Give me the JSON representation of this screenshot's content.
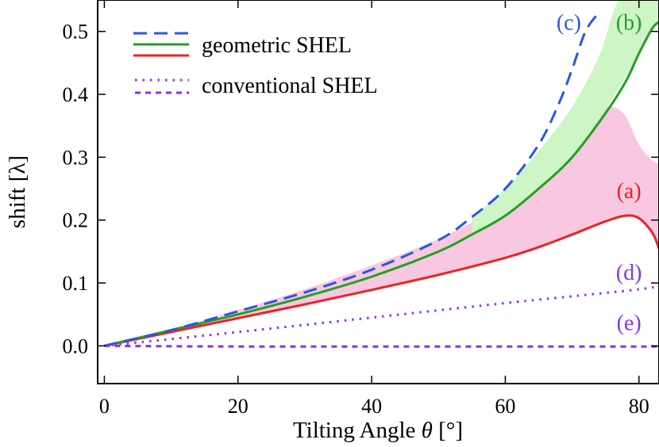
{
  "chart_data": {
    "type": "line",
    "xlabel_prefix": "Tilting Angle ",
    "xlabel_symbol": "θ",
    "xlabel_suffix": " [°]",
    "ylabel": "shift [λ]",
    "xlim": [
      -1,
      83
    ],
    "ylim": [
      -0.06,
      0.55
    ],
    "xticks": [
      "0",
      "20",
      "40",
      "60",
      "80"
    ],
    "xtick_values": [
      0,
      20,
      40,
      60,
      80
    ],
    "yticks": [
      "0.0",
      "0.1",
      "0.2",
      "0.3",
      "0.4",
      "0.5"
    ],
    "ytick_values": [
      0,
      0.1,
      0.2,
      0.3,
      0.4,
      0.5
    ],
    "legend": {
      "position": "top-left",
      "entries": [
        {
          "label": "geometric SHEL",
          "styles": [
            "dashed-blue",
            "solid-green",
            "solid-red"
          ]
        },
        {
          "label": "conventional SHEL",
          "styles": [
            "dotted-purple",
            "dashed-purple"
          ]
        }
      ]
    },
    "series": [
      {
        "id": "a",
        "label": "(a)",
        "style": "solid",
        "color": "#ee2222",
        "x": [
          0,
          10,
          20,
          30,
          40,
          50,
          60,
          65,
          70,
          75,
          78,
          80,
          82,
          83
        ],
        "y": [
          0,
          0.022,
          0.044,
          0.066,
          0.089,
          0.113,
          0.14,
          0.157,
          0.177,
          0.198,
          0.207,
          0.203,
          0.18,
          0.155
        ]
      },
      {
        "id": "b",
        "label": "(b)",
        "style": "solid",
        "color": "#22a022",
        "x": [
          0,
          10,
          20,
          30,
          40,
          50,
          55,
          60,
          65,
          70,
          75,
          78,
          80,
          82,
          83
        ],
        "y": [
          0,
          0.025,
          0.05,
          0.078,
          0.11,
          0.15,
          0.177,
          0.207,
          0.25,
          0.3,
          0.37,
          0.42,
          0.465,
          0.505,
          0.515
        ]
      },
      {
        "id": "c",
        "label": "(c)",
        "style": "dashed",
        "color": "#2a55e5",
        "x": [
          0,
          10,
          20,
          30,
          40,
          50,
          55,
          60,
          65,
          68,
          70,
          72,
          74
        ],
        "y": [
          0,
          0.025,
          0.055,
          0.085,
          0.121,
          0.168,
          0.205,
          0.25,
          0.32,
          0.385,
          0.44,
          0.5,
          0.53
        ]
      },
      {
        "id": "d",
        "label": "(d)",
        "style": "dotted",
        "color": "#8833ee",
        "x": [
          0,
          20,
          40,
          60,
          80,
          83
        ],
        "y": [
          0,
          0.022,
          0.045,
          0.068,
          0.09,
          0.097
        ]
      },
      {
        "id": "e",
        "label": "(e)",
        "style": "dashed",
        "color": "#8833ee",
        "x": [
          0,
          20,
          40,
          60,
          83
        ],
        "y": [
          0,
          -0.001,
          -0.001,
          -0.001,
          -0.001
        ]
      }
    ],
    "bands": [
      {
        "id": "pink-band",
        "color": "#f8c8e0",
        "x": [
          0,
          10,
          20,
          30,
          40,
          50,
          60,
          65,
          70,
          74,
          76,
          78,
          80,
          82,
          83
        ],
        "upper": [
          0,
          0.027,
          0.057,
          0.09,
          0.128,
          0.17,
          0.225,
          0.26,
          0.315,
          0.37,
          0.38,
          0.365,
          0.32,
          0.295,
          0.29
        ],
        "lower": [
          0,
          0.022,
          0.044,
          0.066,
          0.089,
          0.113,
          0.14,
          0.157,
          0.177,
          0.195,
          0.203,
          0.207,
          0.203,
          0.18,
          0.155
        ]
      },
      {
        "id": "green-band",
        "color": "#cdf5c5",
        "x": [
          55,
          60,
          65,
          70,
          74,
          77,
          80,
          82,
          83
        ],
        "upper": [
          0.205,
          0.25,
          0.31,
          0.38,
          0.46,
          0.55,
          0.55,
          0.55,
          0.55
        ],
        "lower": [
          0.177,
          0.207,
          0.25,
          0.3,
          0.36,
          0.41,
          0.465,
          0.505,
          0.515
        ]
      }
    ],
    "annotations": [
      {
        "id": "a",
        "text": "(a)",
        "color": "#ee2222",
        "x": 78.5,
        "y": 0.235
      },
      {
        "id": "b",
        "text": "(b)",
        "color": "#22a022",
        "x": 78.5,
        "y": 0.503
      },
      {
        "id": "c",
        "text": "(c)",
        "color": "#2a55e5",
        "x": 69.5,
        "y": 0.503
      },
      {
        "id": "d",
        "text": "(d)",
        "color": "#8833ee",
        "x": 78.5,
        "y": 0.105
      },
      {
        "id": "e",
        "text": "(e)",
        "color": "#8833ee",
        "x": 78.5,
        "y": 0.025
      }
    ]
  }
}
